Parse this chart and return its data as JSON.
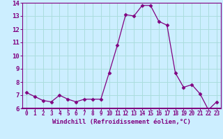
{
  "x": [
    0,
    1,
    2,
    3,
    4,
    5,
    6,
    7,
    8,
    9,
    10,
    11,
    12,
    13,
    14,
    15,
    16,
    17,
    18,
    19,
    20,
    21,
    22,
    23
  ],
  "y": [
    7.2,
    6.9,
    6.6,
    6.5,
    7.0,
    6.7,
    6.5,
    6.7,
    6.7,
    6.7,
    8.7,
    10.8,
    13.1,
    13.0,
    13.8,
    13.8,
    12.6,
    12.3,
    8.7,
    7.6,
    7.8,
    7.1,
    5.9,
    6.5
  ],
  "line_color": "#800080",
  "marker": "D",
  "marker_size": 2.5,
  "bg_color": "#cceeff",
  "grid_color": "#aadddd",
  "xlabel": "Windchill (Refroidissement éolien,°C)",
  "ylim": [
    6,
    14
  ],
  "xlim_min": -0.5,
  "xlim_max": 23.5,
  "yticks": [
    6,
    7,
    8,
    9,
    10,
    11,
    12,
    13,
    14
  ],
  "xticks": [
    0,
    1,
    2,
    3,
    4,
    5,
    6,
    7,
    8,
    9,
    10,
    11,
    12,
    13,
    14,
    15,
    16,
    17,
    18,
    19,
    20,
    21,
    22,
    23
  ],
  "axis_color": "#800080",
  "tick_color": "#800080",
  "label_color": "#800080",
  "xlabel_fontsize": 6.5,
  "ytick_fontsize": 6.5,
  "xtick_fontsize": 5.5
}
